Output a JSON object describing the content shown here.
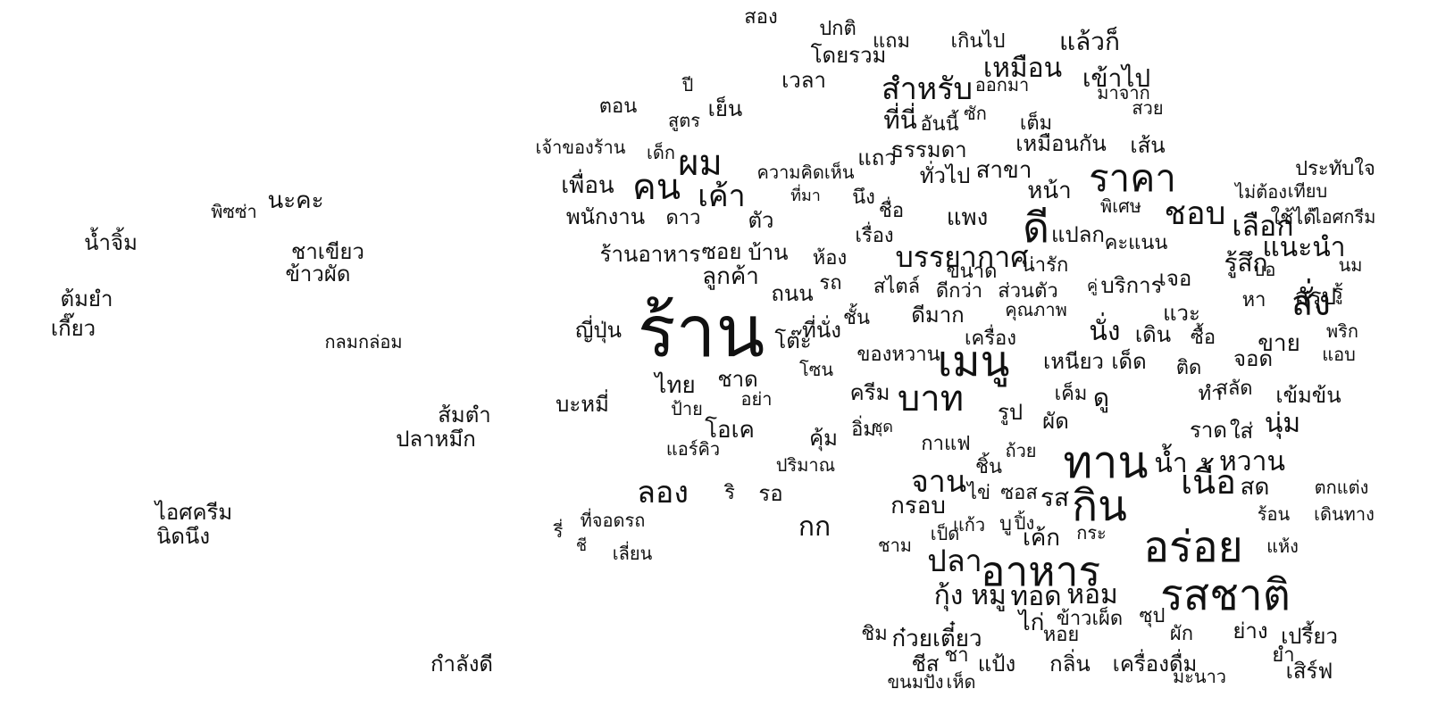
{
  "text_color": "#111111",
  "background": "#ffffff",
  "words": [
    "สอง",
    "ปกติ",
    "โดยรวม",
    "แถม",
    "เกินไป",
    "แล้วก็",
    "เหมือน",
    "เวลา",
    "ปี",
    "สำหรับ",
    "ออกมา",
    "เข้าไป",
    "มาจาก",
    "ตอน",
    "เย็น",
    "สูตร",
    "ที่นี่",
    "อันนี้",
    "ซัก",
    "สวย",
    "เต็ม",
    "เจ้าของร้าน",
    "เด็ก",
    "ผม",
    "แถว",
    "ธรรมดา",
    "เหมือนกัน",
    "เส้น",
    "ราคา",
    "ความคิดเห็น",
    "ทั่วไป",
    "สาขา",
    "ประทับใจ",
    "เพื่อน",
    "คน",
    "เค้า",
    "ที่มา",
    "นึง",
    "ชื่อ",
    "หน้า",
    "พิเศษ",
    "ไม่ต้อง",
    "เทียบ",
    "พิซซ่า",
    "นะคะ",
    "พนักงาน",
    "ดาว",
    "ตัว",
    "แพง",
    "ดี",
    "ชอบ",
    "เลือก",
    "ใช้ได้",
    "ไอศกรีม",
    "น้ำจิ้ม",
    "เรื่อง",
    "แปลก",
    "คะแนน",
    "แนะนำ",
    "ชาเขียว",
    "ร้านอาหาร",
    "ซอย",
    "บ้าน",
    "ห้อง",
    "บรรยากาศ",
    "รู้สึก",
    "นม",
    "ข้าวผัด",
    "ลูกค้า",
    "ขนาด",
    "น่ารัก",
    "บอ",
    "ต้มยำ",
    "ถนน",
    "รถ",
    "สไตล์",
    "ดีกว่า",
    "ส่วนตัว",
    "คู่",
    "บริการ",
    "เจอ",
    "สรุป",
    "รู้",
    "หา",
    "สั่ง",
    "เกี๊ยว",
    "กลมกล่อม",
    "ญี่ปุ่น",
    "ร้าน",
    "ที่นั่ง",
    "ชั้น",
    "ดีมาก",
    "คุณภาพ",
    "นั่ง",
    "เดิน",
    "แวะ",
    "ซื้อ",
    "พริก",
    "โต๊ะ",
    "เครื่อง",
    "ขาย",
    "ของหวาน",
    "เมนู",
    "เหนียว",
    "เด็ด",
    "จอด",
    "แอบ",
    "โซน",
    "ติด",
    "ไทย",
    "ชาด",
    "ครีม",
    "บาท",
    "เค็ม",
    "ดู",
    "สลัด",
    "เข้มข้น",
    "บะหมี่",
    "อย่า",
    "ทำ",
    "ป้าย",
    "รูป",
    "ผัด",
    "ส้มตำ",
    "อิ่ม",
    "ชุด",
    "ราด",
    "ใส่",
    "นุ่ม",
    "ปลาหมึก",
    "โอเค",
    "คุ้ม",
    "กาแฟ",
    "ทาน",
    "น้ำ",
    "ถ้วย",
    "หวาน",
    "แอร์คิว",
    "ปริมาณ",
    "จาน",
    "ชิ้น",
    "ตกแต่ง",
    "เนื้อ",
    "สด",
    "ลอง",
    "ริ",
    "รอ",
    "ไข่",
    "ซอส",
    "รส",
    "กิน",
    "ไอศครีม",
    "กรอบ",
    "ร้อน",
    "เดินทาง",
    "นิดนึง",
    "รี่",
    "ที่จอดรถ",
    "กก",
    "แก้ว",
    "ปิ้ง",
    "บู",
    "เป็ด",
    "เค้ก",
    "กระ",
    "ชี",
    "เลี่ยน",
    "อร่อย",
    "แห้ง",
    "ชาม",
    "ปลา",
    "อาหาร",
    "กุ้ง",
    "หมู",
    "ทอด",
    "หอม",
    "รสชาติ",
    "ไก่",
    "ข้าวเผ็ด",
    "ชิม",
    "ซุป",
    "ก๋วยเตี๋ยว",
    "หอย",
    "ผัก",
    "ย่าง",
    "เปรี้ยว",
    "กำลังดี",
    "ชีส",
    "ชา",
    "แป้ง",
    "กลิ่น",
    "เครื่องดื่ม",
    "ยำ",
    "เสิร์ฟ",
    "ขนมปัง",
    "เห็ด",
    "มะนาว"
  ]
}
